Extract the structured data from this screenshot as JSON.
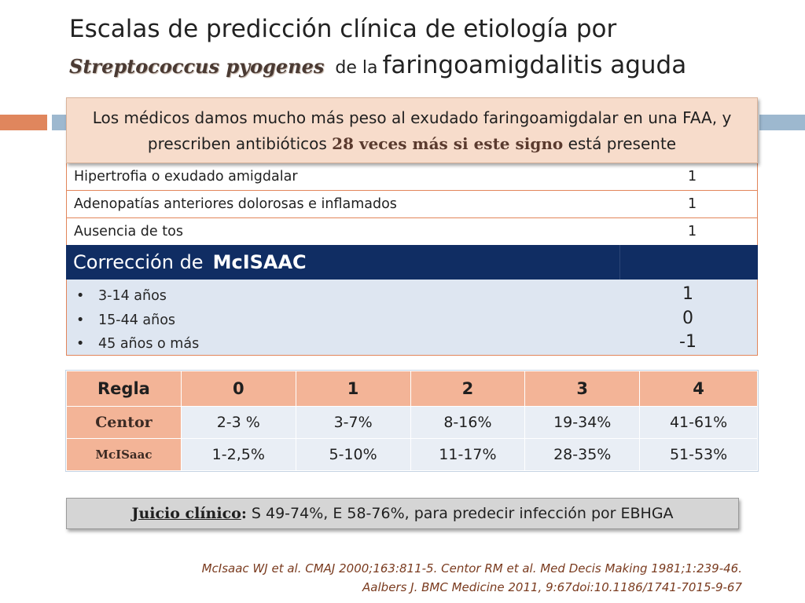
{
  "title": {
    "line1": "Escalas de predicción clínica  de etiología por",
    "species": "Streptococcus pyogenes",
    "connector": "de la",
    "line2_tail": "faringoamigdalitis aguda"
  },
  "callout": {
    "part1": "Los médicos damos mucho más peso al exudado faringoamigdalar en una FAA, y prescriben antibióticos",
    "highlight": "28 veces más si este signo",
    "part2": "está presente"
  },
  "criteria": [
    {
      "label": "Hipertrofia o exudado amigdalar",
      "points": "1"
    },
    {
      "label": "Adenopatías anteriores dolorosas e inflamados",
      "points": "1"
    },
    {
      "label": "Ausencia de tos",
      "points": "1"
    }
  ],
  "mcisaac_header": {
    "prefix": "Corrección  de",
    "name": "McISAAC"
  },
  "age_groups": [
    {
      "label": "3-14 años",
      "points": "1"
    },
    {
      "label": "15-44 años",
      "points": "0"
    },
    {
      "label": "45 años o más",
      "points": "-1"
    }
  ],
  "rates_table": {
    "header": [
      "Regla",
      "0",
      "1",
      "2",
      "3",
      "4"
    ],
    "rows": [
      {
        "rule": "Centor",
        "values": [
          "2-3 %",
          "3-7%",
          "8-16%",
          "19-34%",
          "41-61%"
        ]
      },
      {
        "rule": "McISaac",
        "values": [
          "1-2,5%",
          "5-10%",
          "11-17%",
          "28-35%",
          "51-53%"
        ]
      }
    ]
  },
  "clinical_judgment": {
    "label": "Juicio clínico",
    "colon": ":",
    "text": " S 49-74%, E 58-76%, para predecir infección por EBHGA"
  },
  "references": [
    "McIsaac WJ et al. CMAJ 2000;163:811-5. Centor RM et al. Med Decis Making 1981;1:239-46.",
    "Aalbers J. BMC Medicine 2011, 9:67doi:10.1186/1741-7015-9-67"
  ],
  "colors": {
    "accent_orange": "#e0865d",
    "accent_blue": "#9db8cf",
    "header_navy": "#102d63",
    "table_salmon": "#f3b497",
    "table_light": "#e9eef5"
  }
}
